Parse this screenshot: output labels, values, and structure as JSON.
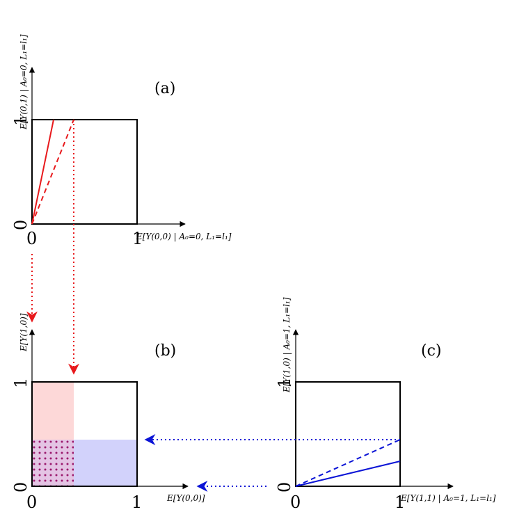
{
  "panels": {
    "a": {
      "label": "(a)",
      "xlabel": "E[Y(0,0) | A₀=0, L₁=l₁]",
      "ylabel": "E[Y(0,1) | A₀=0, L₁=l₁]",
      "tick_x0": "0",
      "tick_x1": "1",
      "tick_y0": "0",
      "tick_y1": "1"
    },
    "b": {
      "label": "(b)",
      "xlabel": "E[Y(0,0)]",
      "ylabel": "E[Y(1,0)]",
      "tick_x0": "0",
      "tick_x1": "1",
      "tick_y0": "0",
      "tick_y1": "1"
    },
    "c": {
      "label": "(c)",
      "xlabel": "E[Y(1,1) | A₀=1, L₁=l₁]",
      "ylabel": "E[Y(1,0) | A₀=1, L₁=l₁]",
      "tick_x0": "0",
      "tick_x1": "1",
      "tick_y0": "0",
      "tick_y1": "1"
    }
  },
  "colors": {
    "red": "#e8191c",
    "blue": "#0b14d6",
    "pink_fill": "#fdd8d8",
    "blue_fill": "#d2d2fb",
    "dots": "#9b1a6e",
    "black": "#000000"
  }
}
